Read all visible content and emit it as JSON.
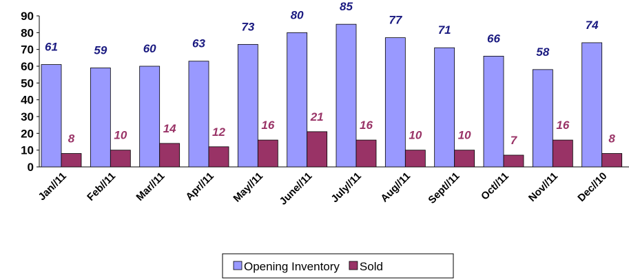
{
  "chart_data": {
    "type": "bar",
    "categories": [
      "Jan//11",
      "Feb//11",
      "Mar//11",
      "Apr//11",
      "May//11",
      "June//11",
      "July//11",
      "Aug//11",
      "Sept//11",
      "Oct//11",
      "Nov//11",
      "Dec//10"
    ],
    "series": [
      {
        "name": "Opening Inventory",
        "color": "#9999ff",
        "label_color": "#1a1a80",
        "values": [
          61,
          59,
          60,
          63,
          73,
          80,
          85,
          77,
          71,
          66,
          58,
          74
        ]
      },
      {
        "name": "Sold",
        "color": "#993366",
        "label_color": "#993366",
        "values": [
          8,
          10,
          14,
          12,
          16,
          21,
          16,
          10,
          10,
          7,
          16,
          8
        ]
      }
    ],
    "ylim": [
      0,
      90
    ],
    "yticks": [
      0,
      10,
      20,
      30,
      40,
      50,
      60,
      70,
      80,
      90
    ],
    "grid": false,
    "legend": "bottom"
  }
}
